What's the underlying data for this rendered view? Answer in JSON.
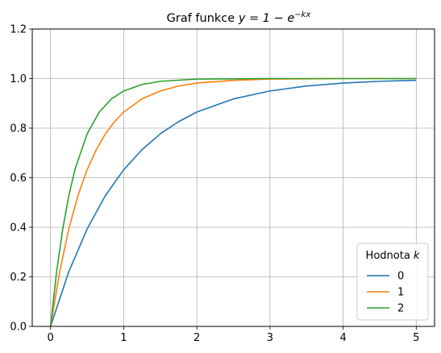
{
  "chart_data": {
    "type": "line",
    "title_prefix": "Graf funkce ",
    "title_math": "y = 1 − e",
    "title_exp": "−kx",
    "xlabel": "",
    "ylabel": "",
    "xlim": [
      -0.25,
      5.25
    ],
    "ylim": [
      0,
      1.2
    ],
    "xticks": [
      0,
      1,
      2,
      3,
      4,
      5
    ],
    "yticks": [
      0.0,
      0.2,
      0.4,
      0.6,
      0.8,
      1.0,
      1.2
    ],
    "xtick_labels": [
      "0",
      "1",
      "2",
      "3",
      "4",
      "5"
    ],
    "ytick_labels": [
      "0.0",
      "0.2",
      "0.4",
      "0.6",
      "0.8",
      "1.0",
      "1.2"
    ],
    "grid": true,
    "legend": {
      "placement": "lower-right",
      "title_prefix": "Hodnota ",
      "title_var": "k"
    },
    "series": [
      {
        "name": "0",
        "color": "#1f77b4",
        "x": [
          0,
          0.25,
          0.5,
          0.75,
          1.0,
          1.25,
          1.5,
          1.75,
          2.0,
          2.5,
          3.0,
          3.5,
          4.0,
          4.5,
          5.0
        ],
        "y": [
          0,
          0.221,
          0.393,
          0.528,
          0.632,
          0.713,
          0.777,
          0.826,
          0.865,
          0.918,
          0.95,
          0.97,
          0.982,
          0.989,
          0.993
        ]
      },
      {
        "name": "1",
        "color": "#ff7f0e",
        "x": [
          0,
          0.125,
          0.25,
          0.375,
          0.5,
          0.625,
          0.75,
          0.875,
          1.0,
          1.25,
          1.5,
          1.75,
          2.0,
          2.5,
          3.0,
          4.0,
          5.0
        ],
        "y": [
          0,
          0.221,
          0.393,
          0.528,
          0.632,
          0.713,
          0.777,
          0.826,
          0.865,
          0.918,
          0.95,
          0.97,
          0.982,
          0.993,
          0.998,
          1.0,
          1.0
        ]
      },
      {
        "name": "2",
        "color": "#2ca02c",
        "x": [
          0,
          0.083,
          0.167,
          0.25,
          0.333,
          0.5,
          0.667,
          0.833,
          1.0,
          1.25,
          1.5,
          2.0,
          2.5,
          3.0,
          4.0,
          5.0
        ],
        "y": [
          0,
          0.221,
          0.393,
          0.528,
          0.632,
          0.777,
          0.865,
          0.918,
          0.95,
          0.976,
          0.989,
          0.998,
          0.999,
          1.0,
          1.0,
          1.0
        ]
      }
    ]
  }
}
